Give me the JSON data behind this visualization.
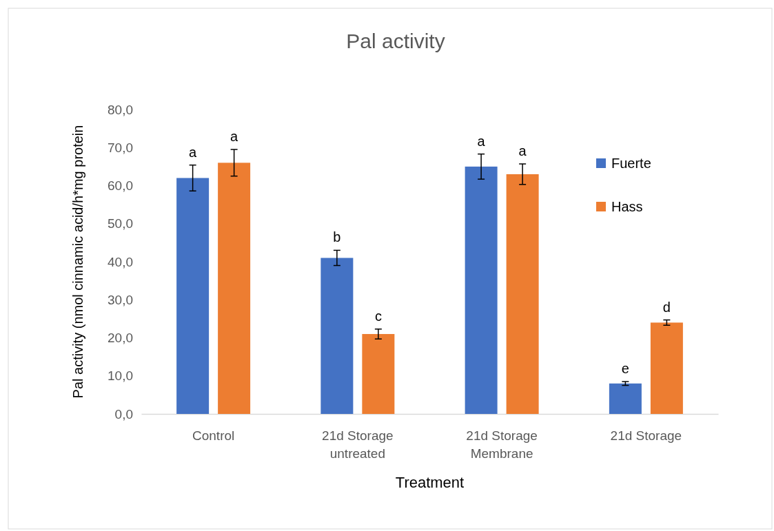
{
  "chart_data": {
    "type": "bar",
    "title": "Pal activity",
    "xlabel": "Treatment",
    "ylabel": "Pal activity (nmol cinnamic acid/h*mg protein",
    "categories": [
      "Control",
      "21d Storage untreated",
      "21d Storage Membrane",
      "21d Storage"
    ],
    "series": [
      {
        "name": "Fuerte",
        "color": "#4472c4",
        "values": [
          62,
          41,
          65,
          8
        ],
        "errors": [
          3.4,
          2,
          3.3,
          0.5
        ],
        "value_labels": [
          "a",
          "b",
          "a",
          "e"
        ]
      },
      {
        "name": "Hass",
        "color": "#ed7d31",
        "values": [
          66,
          21,
          63,
          24
        ],
        "errors": [
          3.5,
          1.3,
          2.7,
          0.7
        ],
        "value_labels": [
          "a",
          "c",
          "a",
          "d"
        ]
      }
    ],
    "ylim": [
      0,
      80
    ],
    "yticks": [
      {
        "value": 0,
        "label": "0,0"
      },
      {
        "value": 10,
        "label": "10,0"
      },
      {
        "value": 20,
        "label": "20,0"
      },
      {
        "value": 30,
        "label": "30,0"
      },
      {
        "value": 40,
        "label": "40,0"
      },
      {
        "value": 50,
        "label": "50,0"
      },
      {
        "value": 60,
        "label": "60,0"
      },
      {
        "value": 70,
        "label": "70,0"
      },
      {
        "value": 80,
        "label": "80,0"
      }
    ],
    "grid": false,
    "legend": "top right"
  }
}
